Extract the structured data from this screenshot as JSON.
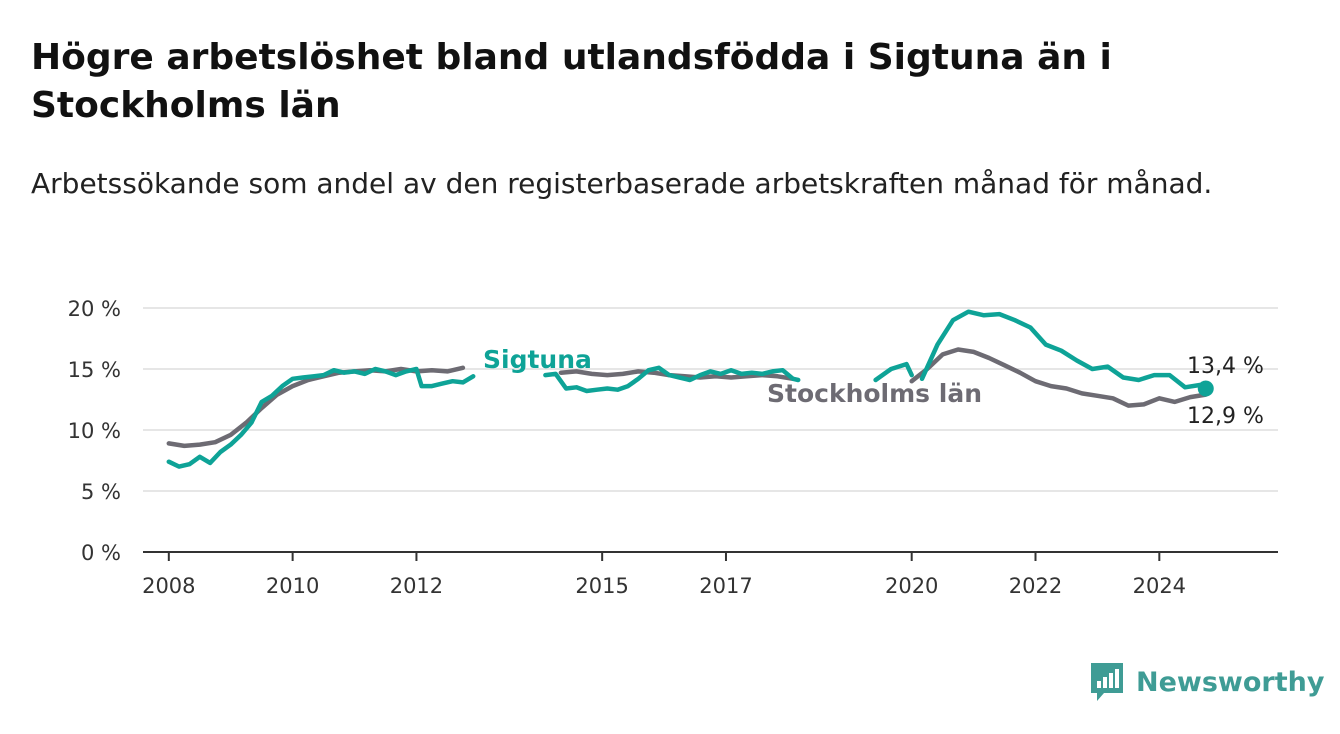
{
  "title": "Högre arbetslöshet bland utlandsfödda i Sigtuna än i Stockholms län",
  "subtitle": "Arbetssökande som andel av den registerbaserade arbetskraften månad för månad.",
  "brand": {
    "name": "Newsworthy",
    "icon": "newsworthy-logo-icon"
  },
  "colors": {
    "sigtuna": "#0ea397",
    "stockholm": "#6d6b73",
    "grid": "#dddddd",
    "axis": "#333333"
  },
  "chart_data": {
    "type": "line",
    "title": "Högre arbetslöshet bland utlandsfödda i Sigtuna än i Stockholms län",
    "subtitle": "Arbetssökande som andel av den registerbaserade arbetskraften månad för månad.",
    "xlabel": "",
    "ylabel": "",
    "x_ticks": [
      "2008",
      "2010",
      "2012",
      "2015",
      "2017",
      "2020",
      "2022",
      "2024"
    ],
    "y_ticks": [
      "0 %",
      "5 %",
      "10 %",
      "15 %",
      "20 %"
    ],
    "ylim": [
      0,
      20
    ],
    "grid": "horizontal",
    "legend": "inline labels",
    "series": [
      {
        "name": "Sigtuna",
        "label": "Sigtuna",
        "end_label": "13,4 %",
        "points": [
          [
            "2008-01",
            7.4
          ],
          [
            "2008-03",
            7.0
          ],
          [
            "2008-05",
            7.2
          ],
          [
            "2008-07",
            7.8
          ],
          [
            "2008-09",
            7.3
          ],
          [
            "2008-11",
            8.2
          ],
          [
            "2009-01",
            8.8
          ],
          [
            "2009-03",
            9.6
          ],
          [
            "2009-05",
            10.6
          ],
          [
            "2009-07",
            12.3
          ],
          [
            "2009-09",
            12.8
          ],
          [
            "2009-11",
            13.6
          ],
          [
            "2010-01",
            14.2
          ],
          [
            "2010-03",
            14.3
          ],
          [
            "2010-05",
            14.4
          ],
          [
            "2010-07",
            14.5
          ],
          [
            "2010-09",
            14.9
          ],
          [
            "2010-11",
            14.7
          ],
          [
            "2011-01",
            14.8
          ],
          [
            "2011-03",
            14.6
          ],
          [
            "2011-05",
            15.0
          ],
          [
            "2011-07",
            14.8
          ],
          [
            "2011-09",
            14.5
          ],
          [
            "2011-11",
            14.8
          ],
          [
            "2012-01",
            15.0
          ],
          [
            "2012-02",
            13.6
          ],
          [
            "2012-04",
            13.6
          ],
          [
            "2012-06",
            13.8
          ],
          [
            "2012-08",
            14.0
          ],
          [
            "2012-10",
            13.9
          ],
          [
            "2012-12",
            14.4
          ],
          null,
          [
            "2014-02",
            14.5
          ],
          [
            "2014-04",
            14.6
          ],
          [
            "2014-06",
            13.4
          ],
          [
            "2014-08",
            13.5
          ],
          [
            "2014-10",
            13.2
          ],
          [
            "2014-12",
            13.3
          ],
          [
            "2015-02",
            13.4
          ],
          [
            "2015-04",
            13.3
          ],
          [
            "2015-06",
            13.6
          ],
          [
            "2015-08",
            14.2
          ],
          [
            "2015-10",
            14.9
          ],
          [
            "2015-12",
            15.1
          ],
          [
            "2016-02",
            14.5
          ],
          [
            "2016-04",
            14.3
          ],
          [
            "2016-06",
            14.1
          ],
          [
            "2016-08",
            14.5
          ],
          [
            "2016-10",
            14.8
          ],
          [
            "2016-12",
            14.6
          ],
          [
            "2017-02",
            14.9
          ],
          [
            "2017-04",
            14.6
          ],
          [
            "2017-06",
            14.7
          ],
          [
            "2017-08",
            14.6
          ],
          [
            "2017-10",
            14.8
          ],
          [
            "2017-12",
            14.9
          ],
          [
            "2018-02",
            14.2
          ],
          [
            "2018-03",
            14.1
          ],
          null,
          [
            "2019-06",
            14.1
          ],
          [
            "2019-09",
            15.0
          ],
          [
            "2019-12",
            15.4
          ],
          [
            "2020-01",
            14.5
          ],
          null,
          [
            "2020-03",
            14.2
          ],
          [
            "2020-06",
            17.0
          ],
          [
            "2020-09",
            19.0
          ],
          [
            "2020-12",
            19.7
          ],
          [
            "2021-03",
            19.4
          ],
          [
            "2021-06",
            19.5
          ],
          [
            "2021-09",
            19.0
          ],
          [
            "2021-12",
            18.4
          ],
          [
            "2022-03",
            17.0
          ],
          [
            "2022-06",
            16.5
          ],
          [
            "2022-09",
            15.7
          ],
          [
            "2022-12",
            15.0
          ],
          [
            "2023-03",
            15.2
          ],
          [
            "2023-06",
            14.3
          ],
          [
            "2023-09",
            14.1
          ],
          [
            "2023-12",
            14.5
          ],
          [
            "2024-03",
            14.5
          ],
          [
            "2024-06",
            13.5
          ],
          [
            "2024-09",
            13.7
          ],
          [
            "2024-10",
            13.4
          ]
        ]
      },
      {
        "name": "Stockholms län",
        "label": "Stockholms län",
        "end_label": "12,9 %",
        "points": [
          [
            "2008-01",
            8.9
          ],
          [
            "2008-04",
            8.7
          ],
          [
            "2008-07",
            8.8
          ],
          [
            "2008-10",
            9.0
          ],
          [
            "2009-01",
            9.6
          ],
          [
            "2009-04",
            10.6
          ],
          [
            "2009-07",
            11.8
          ],
          [
            "2009-10",
            12.9
          ],
          [
            "2010-01",
            13.6
          ],
          [
            "2010-04",
            14.1
          ],
          [
            "2010-07",
            14.4
          ],
          [
            "2010-10",
            14.7
          ],
          [
            "2011-01",
            14.8
          ],
          [
            "2011-04",
            14.9
          ],
          [
            "2011-07",
            14.8
          ],
          [
            "2011-10",
            15.0
          ],
          [
            "2012-01",
            14.8
          ],
          [
            "2012-04",
            14.9
          ],
          [
            "2012-07",
            14.8
          ],
          [
            "2012-10",
            15.1
          ],
          null,
          [
            "2014-05",
            14.7
          ],
          [
            "2014-08",
            14.8
          ],
          [
            "2014-11",
            14.6
          ],
          [
            "2015-02",
            14.5
          ],
          [
            "2015-05",
            14.6
          ],
          [
            "2015-08",
            14.8
          ],
          [
            "2015-11",
            14.7
          ],
          [
            "2016-02",
            14.5
          ],
          [
            "2016-05",
            14.4
          ],
          [
            "2016-08",
            14.3
          ],
          [
            "2016-11",
            14.4
          ],
          [
            "2017-02",
            14.3
          ],
          [
            "2017-05",
            14.4
          ],
          [
            "2017-08",
            14.5
          ],
          [
            "2017-11",
            14.4
          ],
          [
            "2018-02",
            14.2
          ],
          null,
          [
            "2020-01",
            14.0
          ],
          [
            "2020-04",
            15.0
          ],
          [
            "2020-07",
            16.2
          ],
          [
            "2020-10",
            16.6
          ],
          [
            "2021-01",
            16.4
          ],
          [
            "2021-04",
            15.9
          ],
          [
            "2021-07",
            15.3
          ],
          [
            "2021-10",
            14.7
          ],
          [
            "2022-01",
            14.0
          ],
          [
            "2022-04",
            13.6
          ],
          [
            "2022-07",
            13.4
          ],
          [
            "2022-10",
            13.0
          ],
          [
            "2023-01",
            12.8
          ],
          [
            "2023-04",
            12.6
          ],
          [
            "2023-07",
            12.0
          ],
          [
            "2023-10",
            12.1
          ],
          [
            "2024-01",
            12.6
          ],
          [
            "2024-04",
            12.3
          ],
          [
            "2024-07",
            12.7
          ],
          [
            "2024-10",
            12.9
          ]
        ]
      }
    ]
  }
}
